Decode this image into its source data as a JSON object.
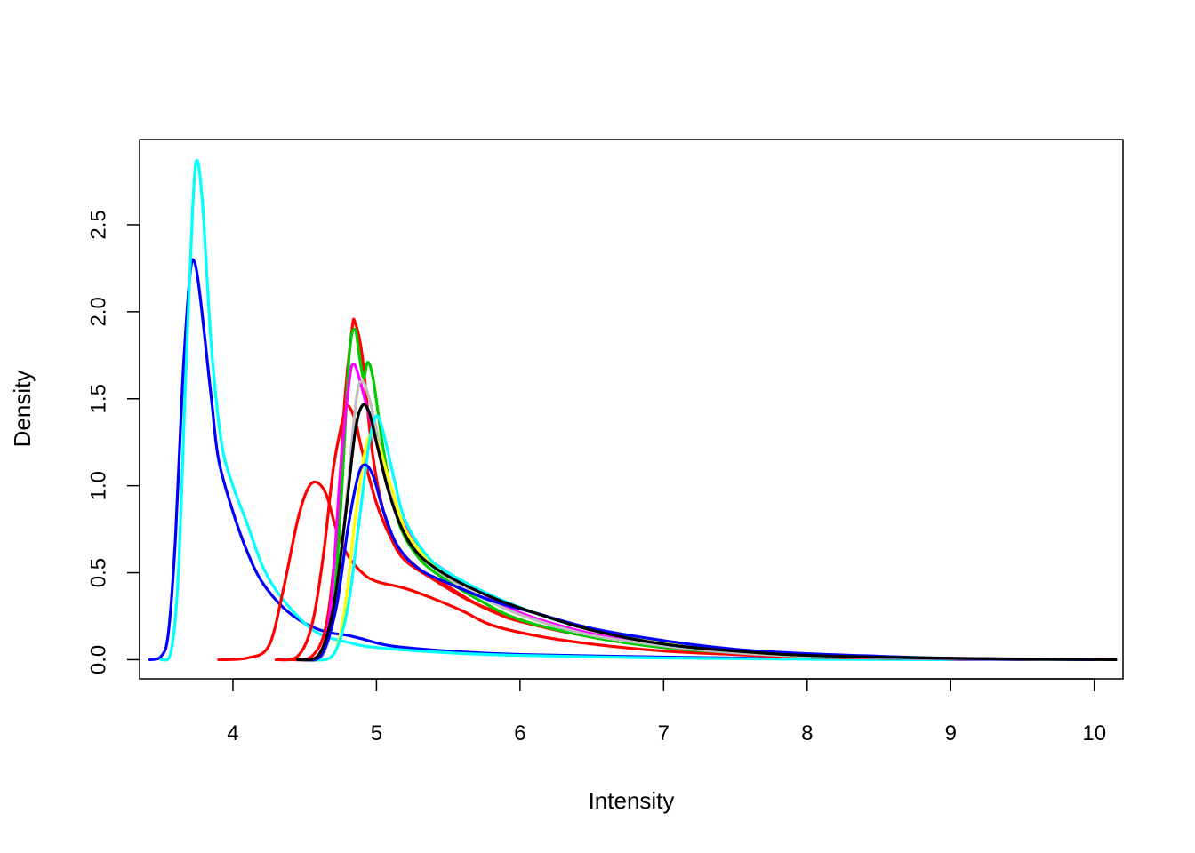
{
  "chart_data": {
    "type": "line",
    "title": "",
    "xlabel": "Intensity",
    "ylabel": "Density",
    "xlim": [
      3.35,
      10.2
    ],
    "ylim": [
      -0.11,
      2.99
    ],
    "xticks": [
      {
        "value": 4,
        "label": "4"
      },
      {
        "value": 5,
        "label": "5"
      },
      {
        "value": 6,
        "label": "6"
      },
      {
        "value": 7,
        "label": "7"
      },
      {
        "value": 8,
        "label": "8"
      },
      {
        "value": 9,
        "label": "9"
      },
      {
        "value": 10,
        "label": "10"
      }
    ],
    "yticks": [
      {
        "value": 0.0,
        "label": "0.0"
      },
      {
        "value": 0.5,
        "label": "0.5"
      },
      {
        "value": 1.0,
        "label": "1.0"
      },
      {
        "value": 1.5,
        "label": "1.5"
      },
      {
        "value": 2.0,
        "label": "2.0"
      },
      {
        "value": 2.5,
        "label": "2.5"
      }
    ],
    "grid": false,
    "legend": "none",
    "series": [
      {
        "color": "#0000ff",
        "points": [
          [
            3.42,
            0
          ],
          [
            3.5,
            0.02
          ],
          [
            3.55,
            0.15
          ],
          [
            3.6,
            0.7
          ],
          [
            3.65,
            1.6
          ],
          [
            3.7,
            2.2
          ],
          [
            3.73,
            2.29
          ],
          [
            3.77,
            2.1
          ],
          [
            3.85,
            1.5
          ],
          [
            3.9,
            1.15
          ],
          [
            4.0,
            0.85
          ],
          [
            4.1,
            0.62
          ],
          [
            4.2,
            0.45
          ],
          [
            4.35,
            0.3
          ],
          [
            4.5,
            0.21
          ],
          [
            4.65,
            0.16
          ],
          [
            4.8,
            0.14
          ],
          [
            4.9,
            0.12
          ],
          [
            5.1,
            0.08
          ],
          [
            5.5,
            0.05
          ],
          [
            6.0,
            0.03
          ],
          [
            7.0,
            0.015
          ],
          [
            8.0,
            0.005
          ],
          [
            9.0,
            0.002
          ],
          [
            9.7,
            0
          ]
        ]
      },
      {
        "color": "#00ffff",
        "points": [
          [
            3.5,
            0
          ],
          [
            3.57,
            0.05
          ],
          [
            3.62,
            0.5
          ],
          [
            3.67,
            1.6
          ],
          [
            3.72,
            2.6
          ],
          [
            3.75,
            2.87
          ],
          [
            3.79,
            2.6
          ],
          [
            3.85,
            1.8
          ],
          [
            3.92,
            1.25
          ],
          [
            4.0,
            1.0
          ],
          [
            4.1,
            0.78
          ],
          [
            4.2,
            0.55
          ],
          [
            4.3,
            0.4
          ],
          [
            4.45,
            0.25
          ],
          [
            4.6,
            0.15
          ],
          [
            4.8,
            0.1
          ],
          [
            5.0,
            0.07
          ],
          [
            5.5,
            0.04
          ],
          [
            6.0,
            0.025
          ],
          [
            7.0,
            0.01
          ],
          [
            8.0,
            0.003
          ],
          [
            9.0,
            0
          ]
        ]
      },
      {
        "color": "#ff0000",
        "points": [
          [
            3.9,
            0
          ],
          [
            4.1,
            0.01
          ],
          [
            4.25,
            0.08
          ],
          [
            4.35,
            0.4
          ],
          [
            4.45,
            0.8
          ],
          [
            4.52,
            0.98
          ],
          [
            4.58,
            1.02
          ],
          [
            4.65,
            0.95
          ],
          [
            4.72,
            0.75
          ],
          [
            4.8,
            0.6
          ],
          [
            4.9,
            0.5
          ],
          [
            5.0,
            0.45
          ],
          [
            5.2,
            0.41
          ],
          [
            5.4,
            0.35
          ],
          [
            5.6,
            0.28
          ],
          [
            5.8,
            0.2
          ],
          [
            6.1,
            0.14
          ],
          [
            6.5,
            0.09
          ],
          [
            7.0,
            0.05
          ],
          [
            7.5,
            0.03
          ],
          [
            8.0,
            0.015
          ],
          [
            9.0,
            0.005
          ],
          [
            9.8,
            0
          ]
        ]
      },
      {
        "color": "#ff0000",
        "points": [
          [
            4.3,
            0
          ],
          [
            4.45,
            0.02
          ],
          [
            4.55,
            0.2
          ],
          [
            4.63,
            0.6
          ],
          [
            4.7,
            1.1
          ],
          [
            4.77,
            1.4
          ],
          [
            4.8,
            1.46
          ],
          [
            4.85,
            1.38
          ],
          [
            4.9,
            1.2
          ],
          [
            5.0,
            0.9
          ],
          [
            5.1,
            0.7
          ],
          [
            5.2,
            0.57
          ],
          [
            5.4,
            0.46
          ],
          [
            5.6,
            0.36
          ],
          [
            5.8,
            0.28
          ],
          [
            6.0,
            0.22
          ],
          [
            6.5,
            0.13
          ],
          [
            7.0,
            0.07
          ],
          [
            7.5,
            0.04
          ],
          [
            8.0,
            0.02
          ],
          [
            9.0,
            0.006
          ],
          [
            10.15,
            0
          ]
        ]
      },
      {
        "color": "#ff0000",
        "points": [
          [
            4.4,
            0
          ],
          [
            4.55,
            0.02
          ],
          [
            4.65,
            0.2
          ],
          [
            4.72,
            0.7
          ],
          [
            4.78,
            1.5
          ],
          [
            4.83,
            1.9
          ],
          [
            4.85,
            1.94
          ],
          [
            4.9,
            1.75
          ],
          [
            4.97,
            1.2
          ],
          [
            5.05,
            0.85
          ],
          [
            5.15,
            0.65
          ],
          [
            5.3,
            0.52
          ],
          [
            5.5,
            0.42
          ],
          [
            5.7,
            0.32
          ],
          [
            5.9,
            0.26
          ],
          [
            6.2,
            0.18
          ],
          [
            6.6,
            0.12
          ],
          [
            7.0,
            0.08
          ],
          [
            7.5,
            0.04
          ],
          [
            8.0,
            0.02
          ],
          [
            9.0,
            0.005
          ],
          [
            10.1,
            0
          ]
        ]
      },
      {
        "color": "#00cd00",
        "points": [
          [
            4.5,
            0
          ],
          [
            4.62,
            0.03
          ],
          [
            4.7,
            0.3
          ],
          [
            4.76,
            1.0
          ],
          [
            4.81,
            1.75
          ],
          [
            4.85,
            1.9
          ],
          [
            4.88,
            1.75
          ],
          [
            4.91,
            1.62
          ],
          [
            4.94,
            1.71
          ],
          [
            4.98,
            1.6
          ],
          [
            5.05,
            1.2
          ],
          [
            5.15,
            0.8
          ],
          [
            5.3,
            0.58
          ],
          [
            5.5,
            0.45
          ],
          [
            5.7,
            0.35
          ],
          [
            6.0,
            0.23
          ],
          [
            6.5,
            0.13
          ],
          [
            7.0,
            0.07
          ],
          [
            7.5,
            0.04
          ],
          [
            8.0,
            0.02
          ],
          [
            9.0,
            0.005
          ],
          [
            9.9,
            0
          ]
        ]
      },
      {
        "color": "#ff00ff",
        "points": [
          [
            4.45,
            0
          ],
          [
            4.6,
            0.03
          ],
          [
            4.68,
            0.3
          ],
          [
            4.75,
            1.1
          ],
          [
            4.81,
            1.6
          ],
          [
            4.84,
            1.7
          ],
          [
            4.88,
            1.62
          ],
          [
            4.95,
            1.4
          ],
          [
            5.05,
            1.1
          ],
          [
            5.15,
            0.85
          ],
          [
            5.3,
            0.63
          ],
          [
            5.5,
            0.5
          ],
          [
            5.7,
            0.4
          ],
          [
            6.0,
            0.27
          ],
          [
            6.5,
            0.15
          ],
          [
            7.0,
            0.08
          ],
          [
            7.5,
            0.04
          ],
          [
            8.0,
            0.02
          ],
          [
            9.0,
            0.005
          ],
          [
            10.0,
            0
          ]
        ]
      },
      {
        "color": "#bebebe",
        "points": [
          [
            4.5,
            0
          ],
          [
            4.63,
            0.03
          ],
          [
            4.72,
            0.35
          ],
          [
            4.8,
            1.0
          ],
          [
            4.86,
            1.5
          ],
          [
            4.9,
            1.6
          ],
          [
            4.95,
            1.5
          ],
          [
            5.02,
            1.25
          ],
          [
            5.1,
            0.95
          ],
          [
            5.2,
            0.72
          ],
          [
            5.35,
            0.57
          ],
          [
            5.5,
            0.47
          ],
          [
            5.8,
            0.33
          ],
          [
            6.1,
            0.23
          ],
          [
            6.5,
            0.14
          ],
          [
            7.0,
            0.08
          ],
          [
            7.5,
            0.04
          ],
          [
            8.0,
            0.02
          ],
          [
            9.0,
            0.006
          ],
          [
            10.1,
            0
          ]
        ]
      },
      {
        "color": "#ffff00",
        "points": [
          [
            4.55,
            0
          ],
          [
            4.7,
            0.03
          ],
          [
            4.78,
            0.3
          ],
          [
            4.85,
            0.8
          ],
          [
            4.92,
            1.2
          ],
          [
            4.97,
            1.3
          ],
          [
            5.02,
            1.22
          ],
          [
            5.1,
            1.0
          ],
          [
            5.2,
            0.75
          ],
          [
            5.35,
            0.58
          ],
          [
            5.5,
            0.48
          ],
          [
            5.8,
            0.36
          ],
          [
            6.1,
            0.27
          ],
          [
            6.5,
            0.18
          ],
          [
            7.0,
            0.1
          ],
          [
            7.5,
            0.05
          ],
          [
            8.0,
            0.025
          ],
          [
            9.0,
            0.008
          ],
          [
            9.8,
            0
          ],
          [
            9.95,
            0
          ]
        ]
      },
      {
        "color": "#00ffff",
        "points": [
          [
            4.55,
            0
          ],
          [
            4.7,
            0.03
          ],
          [
            4.8,
            0.3
          ],
          [
            4.88,
            0.8
          ],
          [
            4.95,
            1.25
          ],
          [
            5.0,
            1.4
          ],
          [
            5.05,
            1.3
          ],
          [
            5.12,
            1.05
          ],
          [
            5.2,
            0.8
          ],
          [
            5.35,
            0.6
          ],
          [
            5.5,
            0.5
          ],
          [
            5.8,
            0.37
          ],
          [
            6.1,
            0.27
          ],
          [
            6.5,
            0.17
          ],
          [
            7.0,
            0.09
          ],
          [
            7.5,
            0.05
          ],
          [
            8.0,
            0.025
          ],
          [
            9.0,
            0.007
          ],
          [
            10.0,
            0
          ]
        ]
      },
      {
        "color": "#0000ff",
        "points": [
          [
            4.5,
            0
          ],
          [
            4.62,
            0.03
          ],
          [
            4.72,
            0.3
          ],
          [
            4.8,
            0.75
          ],
          [
            4.87,
            1.05
          ],
          [
            4.92,
            1.12
          ],
          [
            4.98,
            1.05
          ],
          [
            5.05,
            0.85
          ],
          [
            5.15,
            0.65
          ],
          [
            5.3,
            0.52
          ],
          [
            5.5,
            0.44
          ],
          [
            5.8,
            0.34
          ],
          [
            6.1,
            0.27
          ],
          [
            6.5,
            0.18
          ],
          [
            7.0,
            0.11
          ],
          [
            7.5,
            0.06
          ],
          [
            8.0,
            0.035
          ],
          [
            8.5,
            0.02
          ],
          [
            9.0,
            0.008
          ],
          [
            10.0,
            0
          ]
        ]
      },
      {
        "color": "#000000",
        "points": [
          [
            4.45,
            0
          ],
          [
            4.6,
            0.03
          ],
          [
            4.7,
            0.3
          ],
          [
            4.78,
            0.8
          ],
          [
            4.85,
            1.3
          ],
          [
            4.9,
            1.46
          ],
          [
            4.95,
            1.42
          ],
          [
            5.0,
            1.25
          ],
          [
            5.08,
            0.98
          ],
          [
            5.18,
            0.75
          ],
          [
            5.3,
            0.6
          ],
          [
            5.5,
            0.48
          ],
          [
            5.8,
            0.36
          ],
          [
            6.1,
            0.27
          ],
          [
            6.5,
            0.17
          ],
          [
            7.0,
            0.09
          ],
          [
            7.5,
            0.05
          ],
          [
            8.0,
            0.025
          ],
          [
            9.0,
            0.008
          ],
          [
            9.8,
            0.002
          ],
          [
            10.15,
            0
          ]
        ]
      }
    ]
  }
}
